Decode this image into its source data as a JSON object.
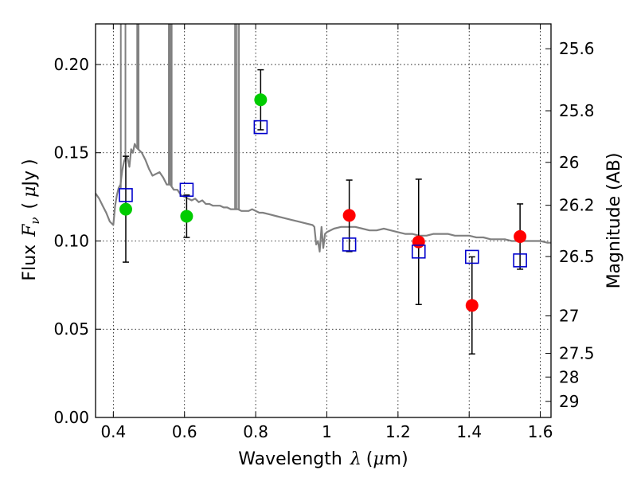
{
  "chart_data": {
    "type": "scatter",
    "title": "",
    "xlabel": "Wavelength",
    "xlabel_symbol": "λ",
    "xlabel_unit_open": "(",
    "xlabel_unit_mu": "μ",
    "xlabel_unit_rest": "m)",
    "ylabel": "Flux",
    "ylabel_symbol": "F",
    "ylabel_sub": "ν",
    "ylabel_unit_open": "(",
    "ylabel_unit_mu": "μ",
    "ylabel_unit_rest": "Jy",
    "ylabel_unit_close": ")",
    "y2label": "Magnitude (AB)",
    "xlim": [
      0.35,
      1.63
    ],
    "ylim": [
      0.0,
      0.223
    ],
    "grid": true,
    "x_ticks": [
      {
        "v": 0.4,
        "label": "0.4"
      },
      {
        "v": 0.6,
        "label": "0.6"
      },
      {
        "v": 0.8,
        "label": "0.8"
      },
      {
        "v": 1.0,
        "label": "1"
      },
      {
        "v": 1.2,
        "label": "1.2"
      },
      {
        "v": 1.4,
        "label": "1.4"
      },
      {
        "v": 1.6,
        "label": "1.6"
      }
    ],
    "y_ticks": [
      {
        "v": 0.0,
        "label": "0.00"
      },
      {
        "v": 0.05,
        "label": "0.05"
      },
      {
        "v": 0.1,
        "label": "0.10"
      },
      {
        "v": 0.15,
        "label": "0.15"
      },
      {
        "v": 0.2,
        "label": "0.20"
      }
    ],
    "y2_ticks": [
      {
        "mag": 25.6,
        "label": "25.6"
      },
      {
        "mag": 25.8,
        "label": "25.8"
      },
      {
        "mag": 26.0,
        "label": "26"
      },
      {
        "mag": 26.2,
        "label": "26.2"
      },
      {
        "mag": 26.5,
        "label": "26.5"
      },
      {
        "mag": 27.0,
        "label": "27"
      },
      {
        "mag": 27.5,
        "label": "27.5"
      },
      {
        "mag": 28.0,
        "label": "28"
      },
      {
        "mag": 29.0,
        "label": "29"
      }
    ],
    "series": [
      {
        "kind": "observed-points",
        "color": "#00cc00",
        "points": [
          {
            "x": 0.435,
            "y": 0.118,
            "err_lo": 0.088,
            "err_hi": 0.148
          },
          {
            "x": 0.606,
            "y": 0.114,
            "err_lo": 0.102,
            "err_hi": 0.126
          },
          {
            "x": 0.814,
            "y": 0.18,
            "err_lo": 0.163,
            "err_hi": 0.197
          }
        ]
      },
      {
        "kind": "observed-points",
        "color": "#ff0000",
        "points": [
          {
            "x": 1.063,
            "y": 0.1145,
            "err_lo": 0.094,
            "err_hi": 0.1345
          },
          {
            "x": 1.258,
            "y": 0.0995,
            "err_lo": 0.064,
            "err_hi": 0.135
          },
          {
            "x": 1.408,
            "y": 0.0635,
            "err_lo": 0.036,
            "err_hi": 0.091
          },
          {
            "x": 1.543,
            "y": 0.1025,
            "err_lo": 0.084,
            "err_hi": 0.121
          }
        ]
      },
      {
        "kind": "model-points",
        "color": "#0000cc",
        "points": [
          {
            "x": 0.435,
            "y": 0.126
          },
          {
            "x": 0.606,
            "y": 0.129
          },
          {
            "x": 0.814,
            "y": 0.1645
          },
          {
            "x": 1.063,
            "y": 0.098
          },
          {
            "x": 1.258,
            "y": 0.094
          },
          {
            "x": 1.408,
            "y": 0.091
          },
          {
            "x": 1.543,
            "y": 0.089
          }
        ]
      },
      {
        "kind": "model-spectrum",
        "color": "#808080",
        "points": [
          {
            "x": 0.35,
            "y": 0.127
          },
          {
            "x": 0.36,
            "y": 0.124
          },
          {
            "x": 0.37,
            "y": 0.12
          },
          {
            "x": 0.38,
            "y": 0.116
          },
          {
            "x": 0.39,
            "y": 0.111
          },
          {
            "x": 0.4,
            "y": 0.109
          },
          {
            "x": 0.405,
            "y": 0.12
          },
          {
            "x": 0.41,
            "y": 0.126
          },
          {
            "x": 0.415,
            "y": 0.13
          },
          {
            "x": 0.42,
            "y": 0.132
          },
          {
            "x": 0.425,
            "y": 0.14
          },
          {
            "x": 0.43,
            "y": 0.145
          },
          {
            "x": 0.435,
            "y": 0.148
          },
          {
            "x": 0.44,
            "y": 0.147
          },
          {
            "x": 0.445,
            "y": 0.142
          },
          {
            "x": 0.45,
            "y": 0.152
          },
          {
            "x": 0.455,
            "y": 0.15
          },
          {
            "x": 0.46,
            "y": 0.155
          },
          {
            "x": 0.465,
            "y": 0.153
          },
          {
            "x": 0.47,
            "y": 0.152
          },
          {
            "x": 0.48,
            "y": 0.15
          },
          {
            "x": 0.49,
            "y": 0.146
          },
          {
            "x": 0.5,
            "y": 0.141
          },
          {
            "x": 0.51,
            "y": 0.137
          },
          {
            "x": 0.52,
            "y": 0.138
          },
          {
            "x": 0.53,
            "y": 0.139
          },
          {
            "x": 0.54,
            "y": 0.136
          },
          {
            "x": 0.55,
            "y": 0.132
          },
          {
            "x": 0.56,
            "y": 0.132
          },
          {
            "x": 0.57,
            "y": 0.129
          },
          {
            "x": 0.58,
            "y": 0.129
          },
          {
            "x": 0.59,
            "y": 0.126
          },
          {
            "x": 0.6,
            "y": 0.125
          },
          {
            "x": 0.61,
            "y": 0.124
          },
          {
            "x": 0.62,
            "y": 0.123
          },
          {
            "x": 0.63,
            "y": 0.124
          },
          {
            "x": 0.64,
            "y": 0.122
          },
          {
            "x": 0.65,
            "y": 0.123
          },
          {
            "x": 0.66,
            "y": 0.121
          },
          {
            "x": 0.67,
            "y": 0.121
          },
          {
            "x": 0.68,
            "y": 0.12
          },
          {
            "x": 0.69,
            "y": 0.12
          },
          {
            "x": 0.7,
            "y": 0.12
          },
          {
            "x": 0.71,
            "y": 0.119
          },
          {
            "x": 0.72,
            "y": 0.119
          },
          {
            "x": 0.73,
            "y": 0.118
          },
          {
            "x": 0.74,
            "y": 0.118
          },
          {
            "x": 0.75,
            "y": 0.118
          },
          {
            "x": 0.76,
            "y": 0.117
          },
          {
            "x": 0.77,
            "y": 0.117
          },
          {
            "x": 0.78,
            "y": 0.117
          },
          {
            "x": 0.79,
            "y": 0.118
          },
          {
            "x": 0.8,
            "y": 0.117
          },
          {
            "x": 0.81,
            "y": 0.116
          },
          {
            "x": 0.82,
            "y": 0.116
          },
          {
            "x": 0.84,
            "y": 0.115
          },
          {
            "x": 0.86,
            "y": 0.114
          },
          {
            "x": 0.88,
            "y": 0.113
          },
          {
            "x": 0.9,
            "y": 0.112
          },
          {
            "x": 0.92,
            "y": 0.111
          },
          {
            "x": 0.94,
            "y": 0.11
          },
          {
            "x": 0.96,
            "y": 0.109
          },
          {
            "x": 0.965,
            "y": 0.108
          },
          {
            "x": 0.97,
            "y": 0.098
          },
          {
            "x": 0.975,
            "y": 0.1
          },
          {
            "x": 0.98,
            "y": 0.094
          },
          {
            "x": 0.985,
            "y": 0.108
          },
          {
            "x": 0.99,
            "y": 0.096
          },
          {
            "x": 0.995,
            "y": 0.104
          },
          {
            "x": 1.0,
            "y": 0.105
          },
          {
            "x": 1.02,
            "y": 0.107
          },
          {
            "x": 1.04,
            "y": 0.108
          },
          {
            "x": 1.06,
            "y": 0.108
          },
          {
            "x": 1.08,
            "y": 0.108
          },
          {
            "x": 1.1,
            "y": 0.107
          },
          {
            "x": 1.12,
            "y": 0.106
          },
          {
            "x": 1.14,
            "y": 0.106
          },
          {
            "x": 1.16,
            "y": 0.107
          },
          {
            "x": 1.18,
            "y": 0.106
          },
          {
            "x": 1.2,
            "y": 0.105
          },
          {
            "x": 1.22,
            "y": 0.104
          },
          {
            "x": 1.24,
            "y": 0.104
          },
          {
            "x": 1.26,
            "y": 0.103
          },
          {
            "x": 1.28,
            "y": 0.103
          },
          {
            "x": 1.3,
            "y": 0.104
          },
          {
            "x": 1.32,
            "y": 0.104
          },
          {
            "x": 1.34,
            "y": 0.104
          },
          {
            "x": 1.36,
            "y": 0.103
          },
          {
            "x": 1.38,
            "y": 0.103
          },
          {
            "x": 1.4,
            "y": 0.103
          },
          {
            "x": 1.42,
            "y": 0.102
          },
          {
            "x": 1.44,
            "y": 0.102
          },
          {
            "x": 1.46,
            "y": 0.101
          },
          {
            "x": 1.48,
            "y": 0.101
          },
          {
            "x": 1.5,
            "y": 0.101
          },
          {
            "x": 1.52,
            "y": 0.1
          },
          {
            "x": 1.54,
            "y": 0.1
          },
          {
            "x": 1.56,
            "y": 0.1
          },
          {
            "x": 1.58,
            "y": 0.1
          },
          {
            "x": 1.6,
            "y": 0.1
          },
          {
            "x": 1.62,
            "y": 0.099
          },
          {
            "x": 1.63,
            "y": 0.099
          }
        ]
      },
      {
        "kind": "emission-lines",
        "color": "#808080",
        "lines": [
          {
            "x": 0.421,
            "base": 0.13
          },
          {
            "x": 0.434,
            "base": 0.145
          },
          {
            "x": 0.467,
            "base": 0.153
          },
          {
            "x": 0.471,
            "base": 0.152
          },
          {
            "x": 0.556,
            "base": 0.132
          },
          {
            "x": 0.56,
            "base": 0.132
          },
          {
            "x": 0.564,
            "base": 0.131
          },
          {
            "x": 0.742,
            "base": 0.118
          },
          {
            "x": 0.747,
            "base": 0.118
          },
          {
            "x": 0.753,
            "base": 0.118
          }
        ]
      }
    ]
  }
}
